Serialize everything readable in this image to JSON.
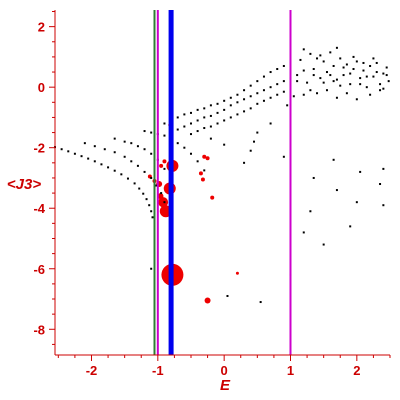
{
  "chart_data": {
    "type": "scatter",
    "title": "",
    "xlabel": "E",
    "ylabel": "<J3>",
    "xlim": [
      -2.55,
      2.5
    ],
    "ylim": [
      -8.85,
      2.55
    ],
    "grid": false,
    "legend": "none",
    "xticks": [
      -2,
      -1,
      0,
      1,
      2
    ],
    "yticks": [
      2,
      0,
      -2,
      -4,
      -6,
      -8
    ],
    "colors": {
      "axis": "#cc0000",
      "label": "#cc0000",
      "points_black": "#000000",
      "points_red": "#ee0000",
      "vline_green": "#2e7d32",
      "vline_magenta": "#cc00cc",
      "vline_blue": "#0000ee"
    },
    "vertical_lines": [
      {
        "x": -1.05,
        "color": "#2e7d32",
        "width": 2
      },
      {
        "x": -1.0,
        "color": "#cc00cc",
        "width": 2
      },
      {
        "x": -0.8,
        "color": "#0000ee",
        "width": 5
      },
      {
        "x": 1.0,
        "color": "#cc00cc",
        "width": 2
      }
    ],
    "series": [
      {
        "color": "#ee0000",
        "marker": "circle",
        "points": [
          {
            "x": -0.78,
            "y": -6.2,
            "size": 11
          },
          {
            "x": -0.88,
            "y": -4.1,
            "size": 6
          },
          {
            "x": -0.92,
            "y": -3.8,
            "size": 5
          },
          {
            "x": -0.96,
            "y": -3.6,
            "size": 3
          },
          {
            "x": -0.82,
            "y": -3.35,
            "size": 6
          },
          {
            "x": -0.78,
            "y": -2.6,
            "size": 6
          },
          {
            "x": -0.98,
            "y": -3.2,
            "size": 3
          },
          {
            "x": -1.05,
            "y": -3.1,
            "size": 2
          },
          {
            "x": -1.12,
            "y": -2.95,
            "size": 2
          },
          {
            "x": -0.95,
            "y": -2.6,
            "size": 2
          },
          {
            "x": -0.9,
            "y": -2.45,
            "size": 2
          },
          {
            "x": -0.35,
            "y": -2.85,
            "size": 2
          },
          {
            "x": -0.32,
            "y": -3.05,
            "size": 2
          },
          {
            "x": -0.3,
            "y": -2.3,
            "size": 2
          },
          {
            "x": -0.25,
            "y": -2.35,
            "size": 2
          },
          {
            "x": -0.18,
            "y": -3.65,
            "size": 2
          },
          {
            "x": -0.25,
            "y": -7.05,
            "size": 3
          },
          {
            "x": 0.2,
            "y": -6.15,
            "size": 1.5
          },
          {
            "x": -0.82,
            "y": -1.25,
            "size": 1.5
          }
        ]
      },
      {
        "color": "#000000",
        "marker": "dot",
        "points": [
          {
            "x": -2.55,
            "y": -1.98
          },
          {
            "x": -2.45,
            "y": -2.05
          },
          {
            "x": -2.35,
            "y": -2.12
          },
          {
            "x": -2.25,
            "y": -2.2
          },
          {
            "x": -2.15,
            "y": -2.28
          },
          {
            "x": -2.05,
            "y": -2.36
          },
          {
            "x": -1.95,
            "y": -2.45
          },
          {
            "x": -1.85,
            "y": -2.55
          },
          {
            "x": -1.75,
            "y": -2.65
          },
          {
            "x": -1.65,
            "y": -2.76
          },
          {
            "x": -1.55,
            "y": -2.88
          },
          {
            "x": -1.45,
            "y": -3.02
          },
          {
            "x": -1.35,
            "y": -3.18
          },
          {
            "x": -1.28,
            "y": -3.35
          },
          {
            "x": -1.22,
            "y": -3.52
          },
          {
            "x": -1.17,
            "y": -3.7
          },
          {
            "x": -1.13,
            "y": -3.9
          },
          {
            "x": -1.1,
            "y": -4.1
          },
          {
            "x": -1.08,
            "y": -4.3
          },
          {
            "x": -2.1,
            "y": -1.85
          },
          {
            "x": -1.95,
            "y": -1.95
          },
          {
            "x": -1.8,
            "y": -2.05
          },
          {
            "x": -1.65,
            "y": -2.15
          },
          {
            "x": -1.5,
            "y": -2.3
          },
          {
            "x": -1.4,
            "y": -2.45
          },
          {
            "x": -1.3,
            "y": -2.6
          },
          {
            "x": -1.2,
            "y": -2.8
          },
          {
            "x": -1.1,
            "y": -3.0
          },
          {
            "x": -1.02,
            "y": -3.25
          },
          {
            "x": -0.95,
            "y": -3.5
          },
          {
            "x": -0.9,
            "y": -3.8
          },
          {
            "x": -1.65,
            "y": -1.7
          },
          {
            "x": -1.5,
            "y": -1.8
          },
          {
            "x": -1.4,
            "y": -1.85
          },
          {
            "x": -1.3,
            "y": -1.95
          },
          {
            "x": -1.2,
            "y": -2.05
          },
          {
            "x": -1.1,
            "y": -2.2
          },
          {
            "x": -1.0,
            "y": -2.4
          },
          {
            "x": -0.9,
            "y": -2.7
          },
          {
            "x": -1.2,
            "y": -1.45
          },
          {
            "x": -1.1,
            "y": -1.5
          },
          {
            "x": -1.0,
            "y": -1.55
          },
          {
            "x": -0.9,
            "y": -1.6
          },
          {
            "x": -0.8,
            "y": -1.7
          },
          {
            "x": -0.7,
            "y": -1.85
          },
          {
            "x": -0.6,
            "y": -2.0
          },
          {
            "x": -0.5,
            "y": -2.2
          },
          {
            "x": -0.4,
            "y": -2.45
          },
          {
            "x": -0.3,
            "y": -2.75
          },
          {
            "x": -0.9,
            "y": -1.2
          },
          {
            "x": -0.8,
            "y": -1.1
          },
          {
            "x": -0.7,
            "y": -1.0
          },
          {
            "x": -0.6,
            "y": -0.9
          },
          {
            "x": -0.5,
            "y": -0.85
          },
          {
            "x": -0.4,
            "y": -0.75
          },
          {
            "x": -0.3,
            "y": -0.7
          },
          {
            "x": -0.2,
            "y": -0.6
          },
          {
            "x": -0.1,
            "y": -0.55
          },
          {
            "x": 0.0,
            "y": -0.45
          },
          {
            "x": 0.1,
            "y": -0.35
          },
          {
            "x": 0.2,
            "y": -0.25
          },
          {
            "x": 0.3,
            "y": -0.1
          },
          {
            "x": 0.4,
            "y": 0.05
          },
          {
            "x": 0.5,
            "y": 0.2
          },
          {
            "x": 0.6,
            "y": 0.35
          },
          {
            "x": 0.7,
            "y": 0.5
          },
          {
            "x": 0.8,
            "y": 0.6
          },
          {
            "x": 0.9,
            "y": 0.7
          },
          {
            "x": -0.7,
            "y": -1.4
          },
          {
            "x": -0.6,
            "y": -1.3
          },
          {
            "x": -0.5,
            "y": -1.2
          },
          {
            "x": -0.4,
            "y": -1.1
          },
          {
            "x": -0.3,
            "y": -1.0
          },
          {
            "x": -0.2,
            "y": -0.95
          },
          {
            "x": -0.1,
            "y": -0.85
          },
          {
            "x": 0.0,
            "y": -0.75
          },
          {
            "x": 0.1,
            "y": -0.6
          },
          {
            "x": 0.2,
            "y": -0.5
          },
          {
            "x": 0.3,
            "y": -0.4
          },
          {
            "x": 0.4,
            "y": -0.3
          },
          {
            "x": 0.5,
            "y": -0.2
          },
          {
            "x": 0.6,
            "y": -0.1
          },
          {
            "x": 0.7,
            "y": 0.0
          },
          {
            "x": 0.8,
            "y": 0.1
          },
          {
            "x": 0.9,
            "y": 0.2
          },
          {
            "x": 1.0,
            "y": 0.3
          },
          {
            "x": 1.1,
            "y": 0.4
          },
          {
            "x": 1.2,
            "y": 0.55
          },
          {
            "x": -0.5,
            "y": -1.55
          },
          {
            "x": -0.4,
            "y": -1.45
          },
          {
            "x": -0.3,
            "y": -1.35
          },
          {
            "x": -0.2,
            "y": -1.3
          },
          {
            "x": -0.1,
            "y": -1.2
          },
          {
            "x": 0.0,
            "y": -1.1
          },
          {
            "x": 0.1,
            "y": -1.0
          },
          {
            "x": 0.2,
            "y": -0.9
          },
          {
            "x": 0.3,
            "y": -0.8
          },
          {
            "x": 0.4,
            "y": -0.7
          },
          {
            "x": 0.5,
            "y": -0.55
          },
          {
            "x": 0.6,
            "y": -0.45
          },
          {
            "x": 0.7,
            "y": -0.35
          },
          {
            "x": 0.8,
            "y": -0.25
          },
          {
            "x": 0.9,
            "y": -0.15
          },
          {
            "x": 0.5,
            "y": -1.5
          },
          {
            "x": 0.45,
            "y": -1.8
          },
          {
            "x": 0.4,
            "y": -2.1
          },
          {
            "x": 0.3,
            "y": -2.5
          },
          {
            "x": 0.7,
            "y": -1.2
          },
          {
            "x": 0.9,
            "y": -2.3
          },
          {
            "x": 0.0,
            "y": -1.9
          },
          {
            "x": -0.2,
            "y": -1.7
          },
          {
            "x": 0.95,
            "y": -0.6
          },
          {
            "x": 1.05,
            "y": -0.3
          },
          {
            "x": 1.1,
            "y": 0.2
          },
          {
            "x": 1.15,
            "y": 0.9
          },
          {
            "x": 1.2,
            "y": 1.25
          },
          {
            "x": 1.3,
            "y": 1.1
          },
          {
            "x": 1.35,
            "y": 0.6
          },
          {
            "x": 1.4,
            "y": 0.95
          },
          {
            "x": 1.45,
            "y": 0.3
          },
          {
            "x": 1.5,
            "y": 0.85
          },
          {
            "x": 1.55,
            "y": 0.5
          },
          {
            "x": 1.6,
            "y": 1.15
          },
          {
            "x": 1.65,
            "y": 0.7
          },
          {
            "x": 1.7,
            "y": 0.25
          },
          {
            "x": 1.75,
            "y": 0.95
          },
          {
            "x": 1.8,
            "y": 0.4
          },
          {
            "x": 1.85,
            "y": 0.75
          },
          {
            "x": 1.9,
            "y": 0.1
          },
          {
            "x": 1.95,
            "y": 0.6
          },
          {
            "x": 2.0,
            "y": 0.85
          },
          {
            "x": 2.05,
            "y": 0.3
          },
          {
            "x": 2.1,
            "y": 0.55
          },
          {
            "x": 2.15,
            "y": 0.0
          },
          {
            "x": 2.2,
            "y": 0.7
          },
          {
            "x": 2.25,
            "y": 0.35
          },
          {
            "x": 2.3,
            "y": 0.5
          },
          {
            "x": 2.35,
            "y": 0.1
          },
          {
            "x": 2.4,
            "y": 0.45
          },
          {
            "x": 2.45,
            "y": 0.65
          },
          {
            "x": 2.48,
            "y": 0.2
          },
          {
            "x": 1.25,
            "y": 0.15
          },
          {
            "x": 1.4,
            "y": -0.2
          },
          {
            "x": 1.55,
            "y": -0.1
          },
          {
            "x": 1.7,
            "y": -0.35
          },
          {
            "x": 1.85,
            "y": -0.2
          },
          {
            "x": 2.0,
            "y": -0.4
          },
          {
            "x": 2.2,
            "y": -0.25
          },
          {
            "x": 2.35,
            "y": -0.1
          },
          {
            "x": 1.3,
            "y": -0.1
          },
          {
            "x": 1.5,
            "y": 0.15
          },
          {
            "x": 1.75,
            "y": 0.05
          },
          {
            "x": 2.05,
            "y": 0.1
          },
          {
            "x": 1.35,
            "y": 0.4
          },
          {
            "x": 1.6,
            "y": 0.4
          },
          {
            "x": 1.9,
            "y": 0.45
          },
          {
            "x": 2.15,
            "y": 0.35
          },
          {
            "x": 2.3,
            "y": 0.8
          },
          {
            "x": 1.45,
            "y": 1.05
          },
          {
            "x": 1.7,
            "y": 1.3
          },
          {
            "x": 1.95,
            "y": 1.0
          },
          {
            "x": 2.25,
            "y": 0.95
          },
          {
            "x": 2.45,
            "y": 0.4
          },
          {
            "x": 1.2,
            "y": -0.25
          },
          {
            "x": 1.65,
            "y": 0.2
          },
          {
            "x": 1.8,
            "y": 0.65
          },
          {
            "x": 2.1,
            "y": 0.8
          },
          {
            "x": 2.4,
            "y": -0.05
          },
          {
            "x": 1.35,
            "y": -3.0
          },
          {
            "x": 1.65,
            "y": -2.4
          },
          {
            "x": 2.05,
            "y": -2.8
          },
          {
            "x": 2.4,
            "y": -2.7
          },
          {
            "x": 1.7,
            "y": -3.4
          },
          {
            "x": 2.35,
            "y": -3.2
          },
          {
            "x": 2.0,
            "y": -3.8
          },
          {
            "x": 1.3,
            "y": -4.1
          },
          {
            "x": 2.4,
            "y": -3.9
          },
          {
            "x": 1.9,
            "y": -4.6
          },
          {
            "x": 1.2,
            "y": -4.8
          },
          {
            "x": 1.5,
            "y": -5.2
          },
          {
            "x": 1.0,
            "y": -6.2
          },
          {
            "x": 0.55,
            "y": -7.1
          },
          {
            "x": 0.05,
            "y": -6.9
          },
          {
            "x": -1.1,
            "y": -6.0
          }
        ]
      }
    ]
  }
}
